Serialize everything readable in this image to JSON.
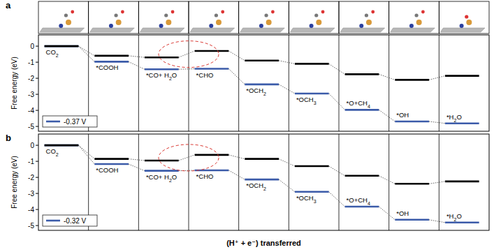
{
  "chart_data": [
    {
      "type": "step",
      "title": "a",
      "ylabel": "Free energy (eV)",
      "categories": [
        "CO2",
        "*COOH",
        "*CO+ H2O",
        "*CHO",
        "*OCH2",
        "*OCH3",
        "*O+CH4",
        "*OH",
        "*H2O"
      ],
      "series": [
        {
          "color": "#000000",
          "values": [
            0,
            -0.6,
            -0.7,
            -0.3,
            -0.9,
            -1.1,
            -1.75,
            -2.1,
            -1.85
          ]
        },
        {
          "name": "-0.37 V",
          "color": "#3b5ba9",
          "values": [
            0,
            -0.97,
            -1.44,
            -1.41,
            -2.38,
            -2.95,
            -3.97,
            -4.69,
            -4.81
          ]
        }
      ],
      "ylim": [
        -5.3,
        0.7
      ],
      "yticks": [
        0,
        -1,
        -2,
        -3,
        -4,
        -5
      ],
      "legend": "lower left"
    },
    {
      "type": "step",
      "title": "b",
      "ylabel": "Free energy (eV)",
      "xlabel": "(H⁺ + e⁻) transferred",
      "categories": [
        "CO2",
        "*COOH",
        "*CO+ H2O",
        "*CHO",
        "*OCH2",
        "*OCH3",
        "*O+CH4",
        "*OH",
        "*H2O"
      ],
      "series": [
        {
          "color": "#000000",
          "values": [
            0,
            -0.85,
            -0.95,
            -0.6,
            -0.85,
            -1.3,
            -1.9,
            -2.4,
            -2.25
          ]
        },
        {
          "name": "-0.32 V",
          "color": "#3b5ba9",
          "values": [
            0,
            -1.17,
            -1.59,
            -1.56,
            -2.13,
            -2.9,
            -3.82,
            -4.64,
            -4.81
          ]
        }
      ],
      "ylim": [
        -5.3,
        0.7
      ],
      "yticks": [
        0,
        -1,
        -2,
        -3,
        -4,
        -5
      ],
      "legend": "lower left"
    }
  ]
}
